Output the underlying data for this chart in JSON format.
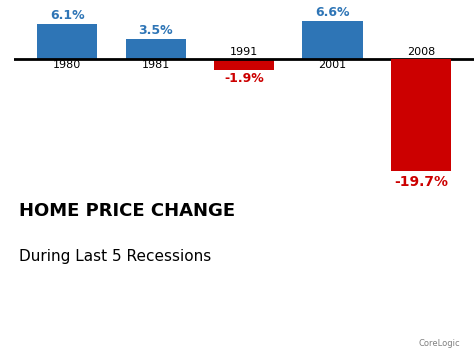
{
  "categories": [
    "1980",
    "1981",
    "1991",
    "2001",
    "2008"
  ],
  "values": [
    6.1,
    3.5,
    -1.9,
    6.6,
    -19.7
  ],
  "bar_colors": [
    "#2E75B6",
    "#2E75B6",
    "#CC0000",
    "#2E75B6",
    "#CC0000"
  ],
  "label_colors": [
    "#2E75B6",
    "#2E75B6",
    "#CC0000",
    "#2E75B6",
    "#CC0000"
  ],
  "labels": [
    "6.1%",
    "3.5%",
    "-1.9%",
    "6.6%",
    "-19.7%"
  ],
  "title_line1": "HOME PRICE CHANGE",
  "title_line2": "During Last 5 Recessions",
  "watermark": "CoreLogic",
  "background_color": "#FFFFFF",
  "ylim": [
    -22,
    9
  ],
  "bar_width": 0.68,
  "figsize": [
    4.74,
    3.55
  ],
  "dpi": 100
}
